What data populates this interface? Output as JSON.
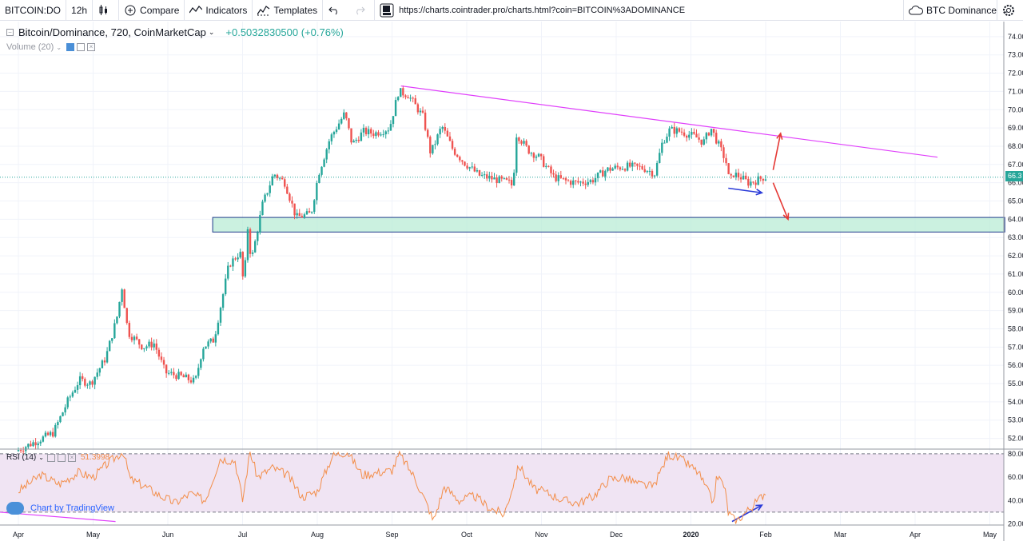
{
  "toolbar": {
    "symbol": "BITCOIN:DO",
    "interval": "12h",
    "compare_label": "Compare",
    "indicators_label": "Indicators",
    "templates_label": "Templates",
    "url": "https://charts.cointrader.pro/charts.html?coin=BITCOIN%3ADOMINANCE",
    "coin_select": "BTC Dominance"
  },
  "legend": {
    "title": "Bitcoin/Dominance, 720, CoinMarketCap",
    "change": "+0.5032830500 (+0.76%)",
    "volume": "Volume (20)",
    "rsi": "RSI (14)",
    "rsi_value": "51.3998"
  },
  "badge": {
    "text": "Chart by TradingView"
  },
  "price_tag": "66.3",
  "colors": {
    "up": "#26a69a",
    "down": "#ef5350",
    "trendline": "#e040fb",
    "support_zone": "#b9ecd6",
    "rsi_line": "#f38e4a",
    "rsi_band": "#f0e4f3",
    "arrow_red": "#e53935",
    "arrow_blue": "#2b3bd8"
  },
  "chart_data": {
    "type": "candlestick",
    "title": "Bitcoin/Dominance, 720, CoinMarketCap",
    "x_labels": [
      "Apr",
      "May",
      "Jun",
      "Jul",
      "Aug",
      "Sep",
      "Oct",
      "Nov",
      "Dec",
      "2020",
      "Feb",
      "Mar",
      "Apr",
      "May"
    ],
    "y_ticks": [
      "52.00",
      "53.00",
      "54.00",
      "55.00",
      "56.00",
      "57.00",
      "58.00",
      "59.00",
      "60.00",
      "61.00",
      "62.00",
      "63.00",
      "64.00",
      "65.00",
      "66.00",
      "67.00",
      "68.00",
      "69.00",
      "70.00",
      "71.00",
      "72.00",
      "73.00",
      "74.00"
    ],
    "ylim": [
      51.5,
      74.3
    ],
    "price_path": [
      [
        0,
        51.3
      ],
      [
        0.3,
        51.9
      ],
      [
        0.5,
        52.3
      ],
      [
        0.7,
        54.1
      ],
      [
        0.85,
        55.2
      ],
      [
        1.0,
        55.0
      ],
      [
        1.2,
        56.4
      ],
      [
        1.35,
        58.6
      ],
      [
        1.42,
        60.3
      ],
      [
        1.5,
        57.8
      ],
      [
        1.7,
        57.0
      ],
      [
        1.85,
        57.2
      ],
      [
        2.0,
        55.6
      ],
      [
        2.2,
        55.4
      ],
      [
        2.4,
        55.1
      ],
      [
        2.5,
        57.0
      ],
      [
        2.65,
        57.4
      ],
      [
        2.85,
        61.5
      ],
      [
        3.0,
        62.2
      ],
      [
        3.05,
        60.3
      ],
      [
        3.1,
        63.6
      ],
      [
        3.15,
        61.7
      ],
      [
        3.3,
        64.8
      ],
      [
        3.45,
        66.5
      ],
      [
        3.6,
        66.0
      ],
      [
        3.75,
        64.1
      ],
      [
        3.95,
        64.3
      ],
      [
        4.05,
        66.5
      ],
      [
        4.2,
        68.4
      ],
      [
        4.4,
        69.8
      ],
      [
        4.5,
        68.1
      ],
      [
        4.65,
        68.8
      ],
      [
        4.8,
        68.7
      ],
      [
        5.0,
        69.0
      ],
      [
        5.12,
        71.0
      ],
      [
        5.25,
        70.8
      ],
      [
        5.35,
        70.2
      ],
      [
        5.45,
        69.6
      ],
      [
        5.55,
        67.6
      ],
      [
        5.7,
        69.1
      ],
      [
        5.85,
        67.8
      ],
      [
        6.0,
        67.1
      ],
      [
        6.2,
        66.4
      ],
      [
        6.4,
        66.2
      ],
      [
        6.6,
        66.0
      ],
      [
        6.65,
        65.8
      ],
      [
        6.7,
        68.7
      ],
      [
        6.85,
        67.8
      ],
      [
        7.0,
        67.4
      ],
      [
        7.2,
        66.3
      ],
      [
        7.35,
        66.1
      ],
      [
        7.5,
        66.0
      ],
      [
        7.7,
        66.1
      ],
      [
        7.9,
        66.7
      ],
      [
        8.0,
        66.8
      ],
      [
        8.2,
        66.9
      ],
      [
        8.4,
        66.8
      ],
      [
        8.55,
        66.5
      ],
      [
        8.65,
        68.2
      ],
      [
        8.75,
        68.9
      ],
      [
        8.9,
        68.8
      ],
      [
        9.1,
        68.5
      ],
      [
        9.2,
        68.2
      ],
      [
        9.3,
        69.0
      ],
      [
        9.4,
        68.1
      ],
      [
        9.5,
        67.2
      ],
      [
        9.55,
        66.0
      ],
      [
        9.6,
        66.5
      ],
      [
        9.7,
        66.3
      ],
      [
        9.8,
        66.0
      ],
      [
        9.9,
        66.1
      ],
      [
        10.0,
        66.3
      ]
    ],
    "rsi": {
      "levels": [
        80,
        30
      ],
      "ylim": [
        19,
        82
      ],
      "ticks": [
        "80.00",
        "60.00",
        "40.00",
        "20.00"
      ],
      "path": [
        [
          0,
          48
        ],
        [
          0.3,
          62
        ],
        [
          0.55,
          54
        ],
        [
          0.8,
          64
        ],
        [
          1.0,
          60
        ],
        [
          1.2,
          72
        ],
        [
          1.4,
          82
        ],
        [
          1.5,
          58
        ],
        [
          1.7,
          52
        ],
        [
          1.9,
          44
        ],
        [
          2.1,
          38
        ],
        [
          2.3,
          46
        ],
        [
          2.5,
          40
        ],
        [
          2.7,
          76
        ],
        [
          2.9,
          74
        ],
        [
          3.0,
          40
        ],
        [
          3.1,
          82
        ],
        [
          3.2,
          60
        ],
        [
          3.4,
          68
        ],
        [
          3.6,
          62
        ],
        [
          3.8,
          43
        ],
        [
          4.0,
          48
        ],
        [
          4.2,
          78
        ],
        [
          4.4,
          82
        ],
        [
          4.6,
          62
        ],
        [
          4.8,
          64
        ],
        [
          5.0,
          66
        ],
        [
          5.1,
          80
        ],
        [
          5.3,
          60
        ],
        [
          5.5,
          32
        ],
        [
          5.55,
          22
        ],
        [
          5.7,
          52
        ],
        [
          5.9,
          40
        ],
        [
          6.1,
          44
        ],
        [
          6.3,
          34
        ],
        [
          6.5,
          28
        ],
        [
          6.7,
          70
        ],
        [
          6.9,
          50
        ],
        [
          7.1,
          46
        ],
        [
          7.3,
          40
        ],
        [
          7.5,
          38
        ],
        [
          7.7,
          44
        ],
        [
          7.9,
          58
        ],
        [
          8.1,
          60
        ],
        [
          8.3,
          54
        ],
        [
          8.5,
          52
        ],
        [
          8.7,
          80
        ],
        [
          8.9,
          74
        ],
        [
          9.1,
          64
        ],
        [
          9.3,
          38
        ],
        [
          9.35,
          62
        ],
        [
          9.45,
          52
        ],
        [
          9.5,
          30
        ],
        [
          9.6,
          22
        ],
        [
          9.7,
          28
        ],
        [
          9.8,
          34
        ],
        [
          9.9,
          40
        ],
        [
          10.0,
          48
        ]
      ]
    },
    "annotations": {
      "trendline": [
        [
          5.12,
          71.3
        ],
        [
          12.3,
          67.4
        ]
      ],
      "support_zone": [
        63.3,
        64.1
      ],
      "zone_x": [
        2.6,
        13.2
      ],
      "arrow_up_target": 68.7,
      "arrow_down_target": 64.0,
      "current_price_line": 66.3
    }
  }
}
